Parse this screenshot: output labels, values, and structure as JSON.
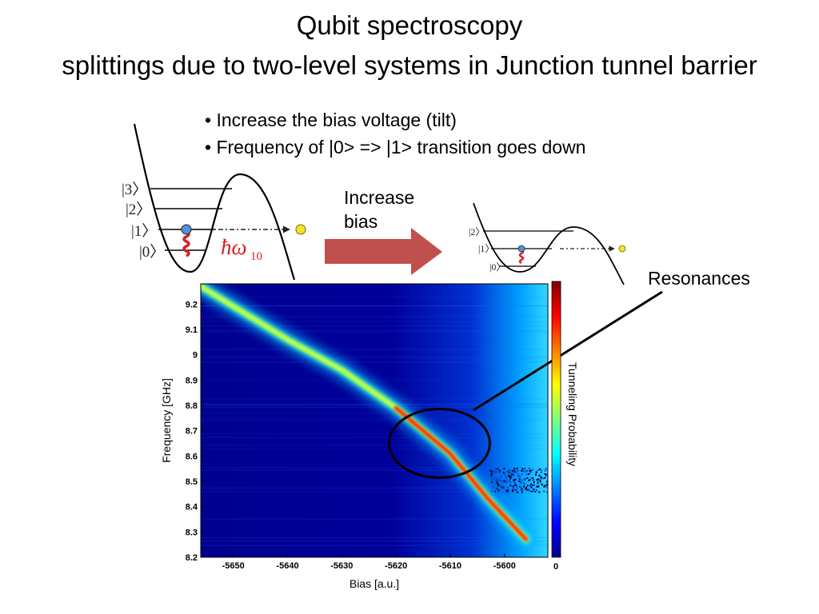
{
  "slide": {
    "title_line1": "Qubit spectroscopy",
    "title_line2": "splittings due to two-level systems in Junction tunnel barrier",
    "bullets": [
      "• Increase the bias voltage (tilt)",
      "• Frequency of |0> =>  |1> transition goes down"
    ],
    "arrow_label_line1": "Increase",
    "arrow_label_line2": "bias",
    "resonances_label": "Resonances"
  },
  "diagrams": {
    "left_levels": [
      "|3〉",
      "|2〉",
      "|1〉",
      "|0〉"
    ],
    "left_transition_label": "ħω",
    "left_transition_subscript": "10",
    "right_levels": [
      "|2〉",
      "|1〉",
      "|0〉"
    ],
    "arrow_color": "#c0504d"
  },
  "chart_data": {
    "type": "heatmap",
    "xlabel": "Bias [a.u.]",
    "ylabel": "Frequency [GHz]",
    "colorbar_label": "Tunneling Probability",
    "colorbar_tick": "0",
    "xlim": [
      -5656,
      -5592
    ],
    "ylim": [
      8.2,
      9.28
    ],
    "x_ticks": [
      -5650,
      -5640,
      -5630,
      -5620,
      -5610,
      -5600
    ],
    "y_ticks": [
      8.2,
      8.3,
      8.4,
      8.5,
      8.6,
      8.7,
      8.8,
      8.9,
      9,
      9.1,
      9.2
    ],
    "x_tick_labels": [
      "-5650",
      "-5640",
      "-5630",
      "-5620",
      "-5610",
      "-5600"
    ],
    "y_tick_labels": [
      "8.2",
      "8.3",
      "8.4",
      "8.5",
      "8.6",
      "8.7",
      "8.8",
      "8.9",
      "9",
      "9.1",
      "9.2"
    ],
    "resonance_line": {
      "bias": [
        -5656,
        -5640,
        -5630,
        -5620,
        -5610,
        -5603,
        -5596
      ],
      "frequency": [
        9.27,
        9.06,
        8.94,
        8.79,
        8.61,
        8.43,
        8.27
      ]
    },
    "resonance_circle_center": {
      "bias": -5612,
      "frequency": 8.65
    },
    "colormap": "jet"
  }
}
